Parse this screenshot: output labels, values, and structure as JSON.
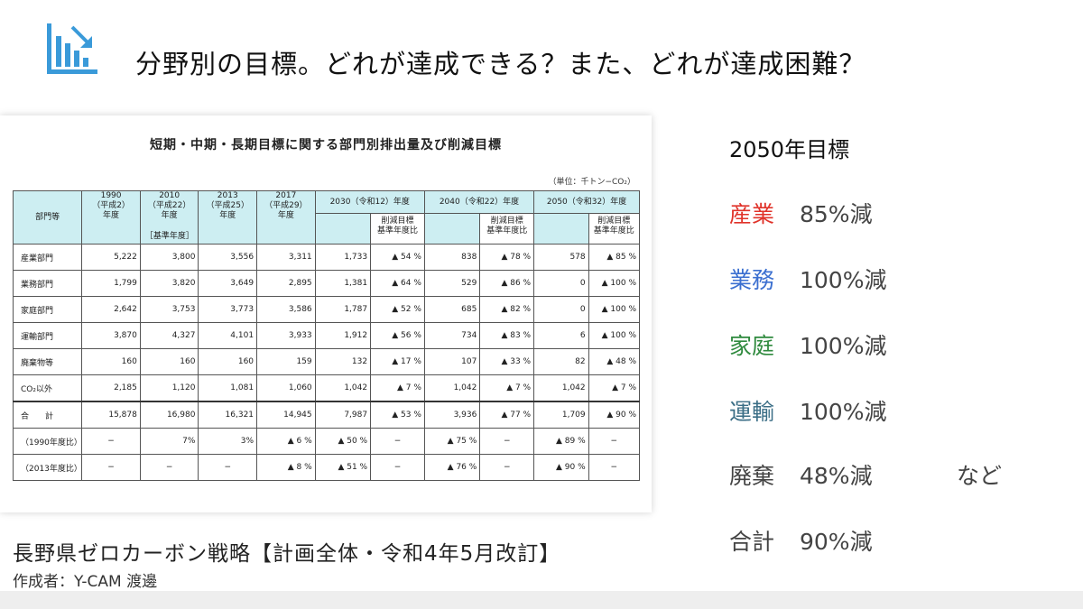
{
  "slide": {
    "title": "分野別の目標。どれが達成できる？また、どれが達成困難？",
    "logo_icon": "bar-chart-down-icon",
    "accent_color": "#3a9ad9"
  },
  "table": {
    "title": "短期・中期・長期目標に関する部門別排出量及び削減目標",
    "unit": "（単位：千トン−CO₂）",
    "header": {
      "dept": "部門等",
      "y1990": "1990\n（平成2）\n年度",
      "y2010": "2010\n（平成22）\n年度",
      "base_note": "［基準年度］",
      "y2013": "2013\n（平成25）\n年度",
      "y2017": "2017\n（平成29）\n年度",
      "y2030": "2030（令和12）年度",
      "y2040": "2040（令和22）年度",
      "y2050": "2050（令和32）年度",
      "reduction": "削減目標\n基準年度比"
    },
    "rows": [
      {
        "label": "産業部門",
        "c": [
          "5,222",
          "3,800",
          "3,556",
          "3,311",
          "1,733",
          "▲ 54 %",
          "838",
          "▲ 78 %",
          "578",
          "▲ 85 %"
        ]
      },
      {
        "label": "業務部門",
        "c": [
          "1,799",
          "3,820",
          "3,649",
          "2,895",
          "1,381",
          "▲ 64 %",
          "529",
          "▲ 86 %",
          "0",
          "▲ 100 %"
        ]
      },
      {
        "label": "家庭部門",
        "c": [
          "2,642",
          "3,753",
          "3,773",
          "3,586",
          "1,787",
          "▲ 52 %",
          "685",
          "▲ 82 %",
          "0",
          "▲ 100 %"
        ]
      },
      {
        "label": "運輸部門",
        "c": [
          "3,870",
          "4,327",
          "4,101",
          "3,933",
          "1,912",
          "▲ 56 %",
          "734",
          "▲ 83 %",
          "6",
          "▲ 100 %"
        ]
      },
      {
        "label": "廃棄物等",
        "c": [
          "160",
          "160",
          "160",
          "159",
          "132",
          "▲ 17 %",
          "107",
          "▲ 33 %",
          "82",
          "▲ 48 %"
        ]
      },
      {
        "label": "CO₂以外",
        "c": [
          "2,185",
          "1,120",
          "1,081",
          "1,060",
          "1,042",
          "▲ 7 %",
          "1,042",
          "▲ 7 %",
          "1,042",
          "▲ 7 %"
        ]
      },
      {
        "label": "合計",
        "c": [
          "15,878",
          "16,980",
          "16,321",
          "14,945",
          "7,987",
          "▲ 53 %",
          "3,936",
          "▲ 77 %",
          "1,709",
          "▲ 90 %"
        ]
      },
      {
        "label": "（1990年度比）",
        "c": [
          "−",
          "7%",
          "3%",
          "▲ 6 %",
          "▲ 50 %",
          "−",
          "▲ 75 %",
          "−",
          "▲ 89 %",
          "−"
        ]
      },
      {
        "label": "（2013年度比）",
        "c": [
          "−",
          "−",
          "−",
          "▲ 8 %",
          "▲ 51 %",
          "−",
          "▲ 76 %",
          "−",
          "▲ 90 %",
          "−"
        ]
      }
    ]
  },
  "caption": "長野県ゼロカーボン戦略【計画全体・令和4年5月改訂】",
  "author": "作成者：Y-CAM 渡邊",
  "targets": {
    "heading": "2050年目標",
    "items": [
      {
        "label": "産業",
        "value": "85%減",
        "color": "#e0332a"
      },
      {
        "label": "業務",
        "value": "100%減",
        "color": "#3b6fd0"
      },
      {
        "label": "家庭",
        "value": "100%減",
        "color": "#2f8a3e"
      },
      {
        "label": "運輸",
        "value": "100%減",
        "color": "#3b6e86"
      },
      {
        "label": "廃棄",
        "value": "48%減",
        "color": "#444444"
      },
      {
        "label": "合計",
        "value": "90%減",
        "color": "#444444"
      }
    ],
    "suffix": "など"
  }
}
